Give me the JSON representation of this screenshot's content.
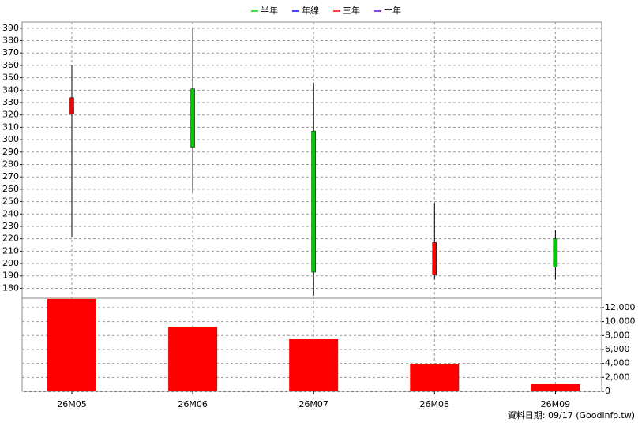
{
  "chart_data": [
    {
      "type": "candlestick",
      "legend": [
        {
          "name": "半年",
          "color": "#00cc00"
        },
        {
          "name": "年線",
          "color": "#0000ff"
        },
        {
          "name": "三年",
          "color": "#ff0000"
        },
        {
          "name": "十年",
          "color": "#6600cc"
        }
      ],
      "categories": [
        "26M05",
        "26M06",
        "26M07",
        "26M08",
        "26M09"
      ],
      "open": [
        321,
        341,
        307,
        191,
        220
      ],
      "high": [
        360,
        390,
        346,
        249,
        227
      ],
      "low": [
        221,
        257,
        174,
        187,
        187
      ],
      "close": [
        334,
        294,
        193,
        217,
        197
      ],
      "up_color": "#ff0000",
      "down_color": "#00cc00",
      "ylim": [
        172,
        395
      ],
      "yticks": [
        180,
        190,
        200,
        210,
        220,
        230,
        240,
        250,
        260,
        270,
        280,
        290,
        300,
        310,
        320,
        330,
        340,
        350,
        360,
        370,
        380,
        390
      ],
      "grid": true
    },
    {
      "type": "bar",
      "values": [
        13245,
        9280,
        7470,
        3960,
        1020
      ],
      "color": "#ff0000",
      "ylim": [
        0,
        13350
      ],
      "yticks": [
        0,
        {
          "value": 2000,
          "label": "2,000"
        },
        {
          "value": 4000,
          "label": "4,000"
        },
        {
          "value": 6000,
          "label": "6,000"
        },
        {
          "value": 8000,
          "label": "8,000"
        },
        {
          "value": 10000,
          "label": "10,000"
        },
        {
          "value": 12000,
          "label": "12,000"
        }
      ],
      "grid": true
    }
  ],
  "footer": "資料日期: 09/17  (Goodinfo.tw)"
}
